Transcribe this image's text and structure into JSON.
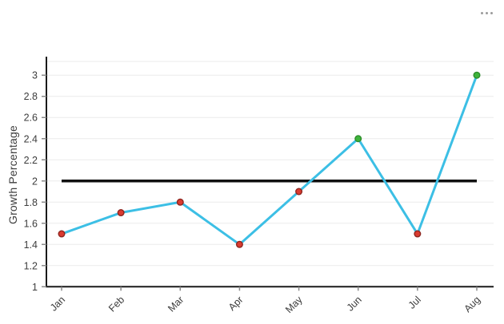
{
  "widget": {
    "more_options_icon": "more-options-menu"
  },
  "colors": {
    "line": "#3cbfe5",
    "point_below": "#da3b30",
    "point_below_stroke": "#8e2620",
    "point_above": "#3eb43b",
    "point_above_stroke": "#2e8c2c",
    "grid": "#ebebeb",
    "axis": "#1a1a1a",
    "tick": "#8a8a8a",
    "text": "#3d3d3d",
    "reference": "#111111",
    "menu_dots": "#9b9b9b"
  },
  "chart_data": {
    "type": "line",
    "title": "",
    "xlabel": "",
    "ylabel": "Growth Percentage",
    "categories": [
      "Jan",
      "Feb",
      "Mar",
      "Apr",
      "May",
      "Jun",
      "Jul",
      "Aug"
    ],
    "series": [
      {
        "name": "Growth Percentage",
        "values": [
          1.5,
          1.7,
          1.8,
          1.4,
          1.9,
          2.4,
          1.5,
          3
        ]
      }
    ],
    "point_status": [
      "below_target",
      "below_target",
      "below_target",
      "below_target",
      "below_target",
      "above_target",
      "below_target",
      "above_target"
    ],
    "reference_line": {
      "value": 2
    },
    "yticks": [
      1,
      1.2,
      1.4,
      1.6,
      1.8,
      2,
      2.2,
      2.4,
      2.6,
      2.8,
      3
    ],
    "ylim": [
      1,
      3.13
    ],
    "grid": true,
    "legend": false
  }
}
